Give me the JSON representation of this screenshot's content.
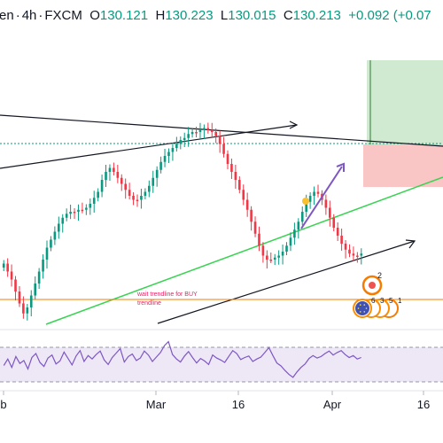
{
  "header": {
    "symbol_fragment": "en",
    "timeframe": "4h",
    "broker": "FXCM",
    "open_label": "O",
    "open_value": "130.121",
    "high_label": "H",
    "high_value": "130.223",
    "low_label": "L",
    "low_value": "130.015",
    "close_label": "C",
    "close_value": "130.213",
    "change": "+0.092 (+0.07"
  },
  "colors": {
    "up_candle": "#089981",
    "down_candle": "#f23645",
    "rsi_line": "#7e57c2",
    "rsi_band": "#ede7f6",
    "support_trendline": "#39d353",
    "orange_line": "#f57c00",
    "annotation_text": "#e91e63",
    "long_profit_zone": "#c8e6c9",
    "long_loss_zone": "#f8bbbb",
    "price_dotted_line": "#089981"
  },
  "annotations": {
    "trendline_note": "wait trendline for BUY",
    "trendline_note_2": "trendline"
  },
  "event_badges": {
    "top_count": "2",
    "bottom_counts": [
      "6",
      "3",
      "5",
      "1"
    ]
  },
  "chart_data": {
    "type": "candlestick",
    "x_tick_labels": [
      "b",
      "Mar",
      "16",
      "Apr",
      "16"
    ],
    "price_series_shape": [
      0.7,
      0.74,
      0.78,
      0.84,
      0.9,
      0.95,
      0.92,
      0.86,
      0.8,
      0.74,
      0.68,
      0.62,
      0.58,
      0.54,
      0.5,
      0.47,
      0.45,
      0.44,
      0.44,
      0.43,
      0.43,
      0.42,
      0.4,
      0.37,
      0.34,
      0.28,
      0.24,
      0.22,
      0.24,
      0.27,
      0.3,
      0.33,
      0.36,
      0.38,
      0.38,
      0.36,
      0.34,
      0.31,
      0.27,
      0.23,
      0.19,
      0.16,
      0.14,
      0.12,
      0.1,
      0.08,
      0.07,
      0.05,
      0.04,
      0.04,
      0.03,
      0.02,
      0.03,
      0.04,
      0.06,
      0.1,
      0.15,
      0.2,
      0.24,
      0.28,
      0.33,
      0.38,
      0.43,
      0.49,
      0.55,
      0.61,
      0.66,
      0.68,
      0.68,
      0.67,
      0.66,
      0.64,
      0.61,
      0.57,
      0.53,
      0.49,
      0.44,
      0.39,
      0.36,
      0.34,
      0.35,
      0.38,
      0.42,
      0.47,
      0.52,
      0.56,
      0.6,
      0.63,
      0.65,
      0.66,
      0.66,
      0.65
    ],
    "rsi_series_shape": [
      0.42,
      0.55,
      0.38,
      0.6,
      0.46,
      0.52,
      0.35,
      0.58,
      0.66,
      0.48,
      0.4,
      0.57,
      0.63,
      0.45,
      0.51,
      0.69,
      0.56,
      0.43,
      0.61,
      0.72,
      0.5,
      0.62,
      0.55,
      0.64,
      0.71,
      0.53,
      0.44,
      0.58,
      0.67,
      0.76,
      0.49,
      0.6,
      0.65,
      0.52,
      0.57,
      0.71,
      0.63,
      0.5,
      0.59,
      0.68,
      0.82,
      0.9,
      0.64,
      0.55,
      0.49,
      0.61,
      0.7,
      0.58,
      0.47,
      0.56,
      0.51,
      0.44,
      0.63,
      0.57,
      0.53,
      0.48,
      0.6,
      0.72,
      0.66,
      0.54,
      0.58,
      0.61,
      0.5,
      0.55,
      0.59,
      0.68,
      0.78,
      0.62,
      0.47,
      0.41,
      0.32,
      0.24,
      0.18,
      0.29,
      0.38,
      0.45,
      0.56,
      0.62,
      0.57,
      0.6,
      0.66,
      0.71,
      0.63,
      0.68,
      0.72,
      0.64,
      0.58,
      0.62,
      0.55,
      0.58
    ],
    "title": "",
    "xlabel": "",
    "ylabel": "",
    "grid": false,
    "legend": "none",
    "rsi_levels_shown": [
      "upper",
      "lower"
    ]
  }
}
